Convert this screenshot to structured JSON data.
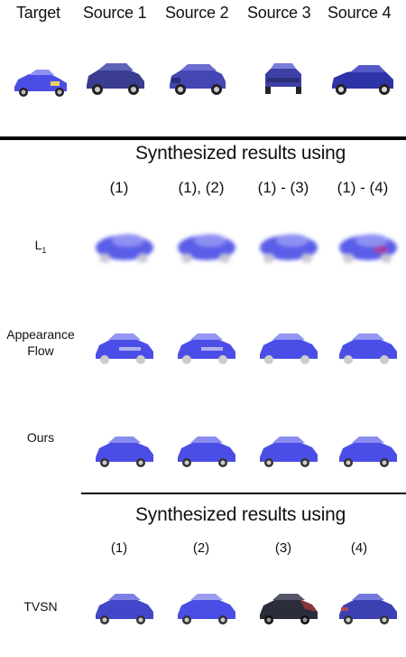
{
  "header": {
    "columns": [
      "Target",
      "Source 1",
      "Source 2",
      "Source 3",
      "Source 4"
    ]
  },
  "section1": {
    "title": "Synthesized results using",
    "columns": [
      "(1)",
      "(1), (2)",
      "(1) - (3)",
      "(1) - (4)"
    ],
    "rows": [
      {
        "label": "L",
        "sub": "1"
      },
      {
        "label": "Appearance",
        "label2": "Flow"
      },
      {
        "label": "Ours"
      }
    ]
  },
  "section2": {
    "title": "Synthesized results using",
    "columns": [
      "(1)",
      "(2)",
      "(3)",
      "(4)"
    ],
    "rows": [
      {
        "label": "TVSN"
      }
    ]
  },
  "colors": {
    "car_blue": "#4b4ee6",
    "car_dark": "#2a2e7a",
    "car_black": "#2b2d3c"
  }
}
